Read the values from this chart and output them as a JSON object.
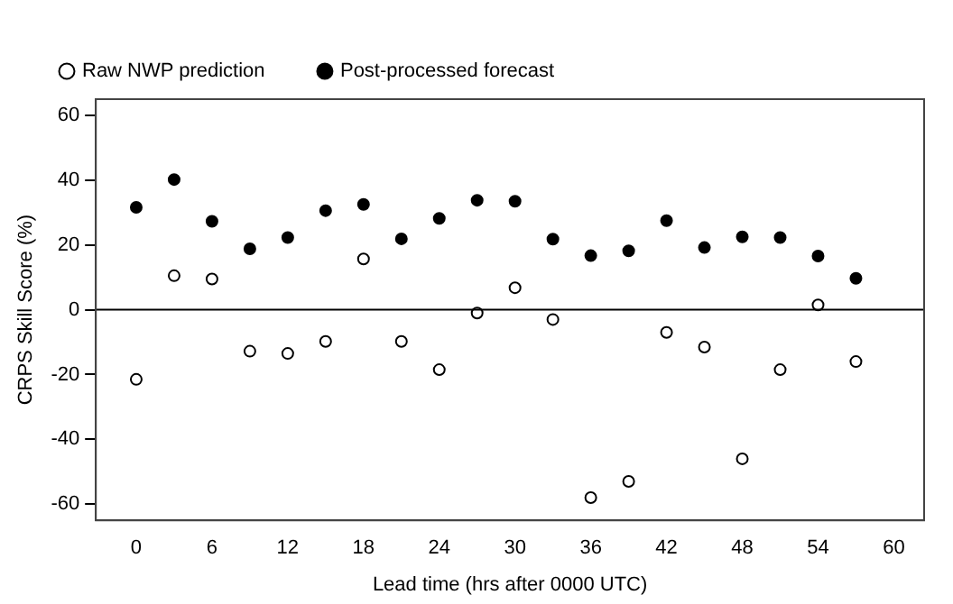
{
  "chart_data": {
    "type": "scatter",
    "xlabel": "Lead time (hrs after 0000 UTC)",
    "ylabel": "CRPS Skill Score (%)",
    "x": [
      0,
      3,
      6,
      9,
      12,
      15,
      18,
      21,
      24,
      27,
      30,
      33,
      36,
      39,
      42,
      45,
      48,
      51,
      54,
      57
    ],
    "series": [
      {
        "name": "Raw NWP prediction",
        "color": "#ffffff",
        "values": [
          -21.5,
          10.5,
          9.5,
          -12.8,
          -13.5,
          -9.8,
          15.7,
          -9.8,
          -18.5,
          -1,
          6.8,
          -3,
          -58,
          -53,
          -7,
          -11.5,
          -46,
          -18.5,
          1.5,
          -16
        ]
      },
      {
        "name": "Post-processed forecast",
        "color": "#000000",
        "values": [
          31.6,
          40.2,
          27.3,
          18.8,
          22.3,
          30.6,
          32.5,
          21.9,
          28.2,
          33.8,
          33.5,
          21.8,
          16.7,
          18.2,
          27.5,
          19.2,
          22.5,
          22.3,
          16.6,
          9.7
        ]
      }
    ],
    "xlim": [
      -3.2,
      62.4
    ],
    "xticks": [
      0,
      6,
      12,
      18,
      24,
      30,
      36,
      42,
      48,
      54,
      60
    ],
    "ylim": [
      -65,
      65
    ],
    "yticks": [
      -60,
      -40,
      -20,
      0,
      20,
      40,
      60
    ],
    "ref_lines": [
      {
        "axis": "y",
        "value": 0,
        "color": "#000000"
      }
    ],
    "grid": false,
    "legend": "top left",
    "marker": "circle"
  }
}
